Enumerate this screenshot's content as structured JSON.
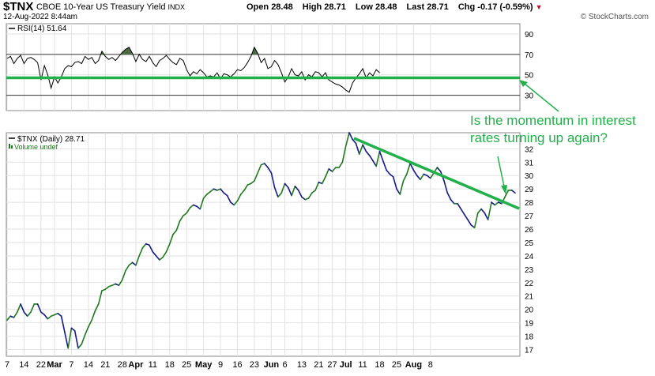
{
  "header": {
    "symbol": "$TNX",
    "name": "CBOE 10-Year US Treasury Yield",
    "exchange": "INDX",
    "date": "12-Aug-2022 8:44am",
    "brand": "© StockCharts.com",
    "quote": {
      "open_label": "Open",
      "open": "28.48",
      "high_label": "High",
      "high": "28.71",
      "low_label": "Low",
      "low": "28.48",
      "last_label": "Last",
      "last": "28.71",
      "chg_label": "Chg",
      "chg": "-0.17 (-0.59%)",
      "down_color": "#c0142d"
    }
  },
  "annotation": {
    "text_line1": "Is the momentum in interest",
    "text_line2": "rates turning up again?",
    "color": "#22b04a"
  },
  "chart_data": [
    {
      "type": "line",
      "panel": "RSI",
      "legend": "RSI(14) 51.64",
      "ylim": [
        15,
        100
      ],
      "yticks": [
        30,
        50,
        70,
        90
      ],
      "reference_lines": [
        30,
        70
      ],
      "highlight_line": 50,
      "overbought_fill_color": "#4e6b45",
      "values": [
        66,
        68,
        61,
        66,
        69,
        61,
        66,
        67,
        65,
        62,
        45,
        59,
        50,
        37,
        48,
        42,
        48,
        56,
        59,
        58,
        62,
        63,
        61,
        68,
        65,
        67,
        61,
        64,
        73,
        68,
        65,
        67,
        64,
        68,
        72,
        75,
        77,
        71,
        63,
        70,
        65,
        63,
        68,
        62,
        58,
        64,
        66,
        69,
        65,
        62,
        60,
        66,
        64,
        55,
        49,
        53,
        51,
        55,
        52,
        48,
        49,
        48,
        52,
        46,
        51,
        50,
        48,
        51,
        55,
        54,
        57,
        62,
        68,
        77,
        71,
        62,
        66,
        56,
        58,
        64,
        60,
        52,
        43,
        48,
        56,
        50,
        49,
        53,
        45,
        50,
        48,
        53,
        52,
        48,
        52,
        45,
        43,
        41,
        40,
        38,
        35,
        33,
        42,
        47,
        51,
        56,
        47,
        52,
        49,
        55,
        52
      ],
      "last_value": 51.64,
      "line_color": "#000000"
    },
    {
      "type": "line",
      "panel": "price",
      "series": [
        {
          "name": "$TNX (Daily) 28.71",
          "up_color": "#1f7a1f",
          "down_color": "#141a8c"
        }
      ],
      "legend_secondary": "Volume undef",
      "x_ticks": [
        "7",
        "14",
        "22",
        "Mar",
        "7",
        "14",
        "21",
        "28",
        "Apr",
        "11",
        "18",
        "25",
        "May",
        "9",
        "16",
        "23",
        "Jun",
        "6",
        "13",
        "21",
        "27",
        "Jul",
        "11",
        "18",
        "25",
        "Aug",
        "8"
      ],
      "ylim": [
        16.5,
        33.2
      ],
      "yticks": [
        17,
        18,
        19,
        20,
        21,
        22,
        23,
        24,
        25,
        26,
        27,
        28,
        29,
        30,
        31,
        32
      ],
      "values": [
        19.2,
        19.5,
        19.4,
        19.8,
        20.4,
        19.8,
        19.5,
        19.8,
        20.4,
        20.4,
        19.8,
        19.6,
        19.3,
        19.5,
        19.6,
        19.7,
        19.5,
        18.3,
        17.1,
        18.6,
        18.4,
        17.1,
        17.4,
        18.1,
        18.7,
        19.2,
        19.9,
        20.4,
        21.4,
        21.5,
        21.7,
        21.8,
        21.9,
        21.8,
        22.2,
        22.9,
        23.3,
        23.5,
        23.3,
        24.0,
        24.6,
        24.9,
        24.8,
        24.3,
        24.0,
        23.7,
        23.9,
        24.3,
        24.9,
        25.6,
        25.9,
        26.6,
        27.0,
        27.2,
        27.6,
        27.8,
        27.7,
        27.5,
        28.3,
        28.6,
        28.8,
        29.0,
        28.9,
        29.0,
        28.7,
        28.5,
        28.0,
        27.8,
        28.1,
        28.6,
        28.9,
        29.3,
        29.4,
        29.6,
        30.2,
        30.8,
        30.9,
        30.6,
        30.2,
        29.1,
        28.4,
        28.7,
        29.4,
        29.1,
        28.5,
        29.2,
        28.9,
        28.4,
        28.2,
        28.3,
        28.7,
        28.9,
        29.5,
        29.4,
        29.9,
        30.5,
        30.3,
        30.6,
        30.6,
        31.0,
        32.2,
        33.2,
        32.7,
        32.4,
        31.6,
        32.3,
        31.8,
        31.5,
        31.1,
        30.7,
        31.8,
        31.1,
        30.4,
        30.1,
        29.9,
        29.0,
        28.6,
        29.6,
        30.1,
        30.9,
        30.4,
        30.0,
        29.7,
        30.1,
        30.0,
        29.8,
        30.2,
        30.6,
        30.3,
        29.6,
        28.7,
        28.2,
        27.9,
        27.9,
        27.5,
        27.1,
        26.7,
        26.3,
        26.1,
        27.2,
        27.5,
        27.2,
        26.7,
        28.0,
        27.8,
        28.0,
        27.9,
        28.4,
        28.9,
        28.9,
        28.7
      ]
    }
  ]
}
